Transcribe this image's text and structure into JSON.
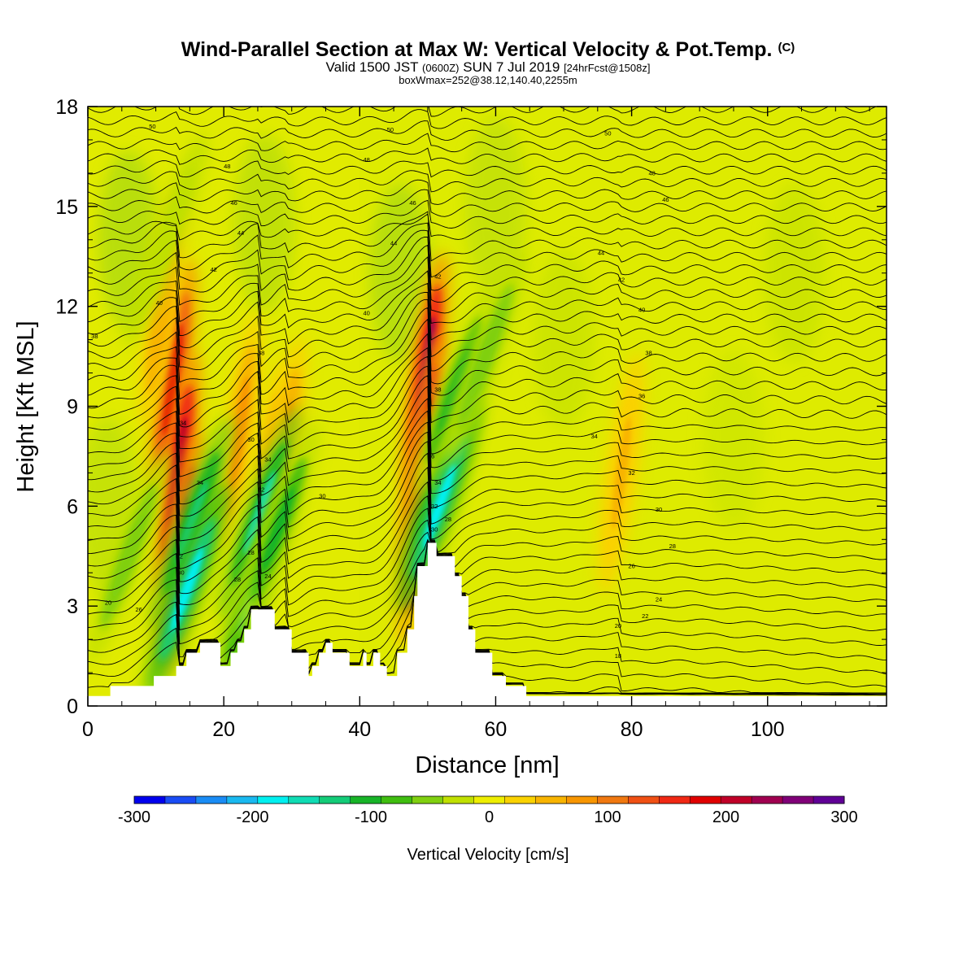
{
  "header": {
    "title": "Wind-Parallel Section at Max W: Vertical Velocity & Pot.Temp.",
    "copyright": "(C)",
    "valid_prefix": "Valid 1500 JST",
    "valid_utc": "(0600Z)",
    "valid_date": "SUN 7 Jul 2019",
    "forecast_tag": "[24hrFcst@1508z]",
    "boxwmax": "boxWmax=252@38.12,140.40,2255m"
  },
  "colors": {
    "field_background": "#eeee00",
    "terrain": "#ffffff",
    "contour": "#000000",
    "colorbar": [
      "#0000ee",
      "#1a4cf5",
      "#1a8cf5",
      "#1ab9f0",
      "#00f0f0",
      "#10dcb4",
      "#14cc78",
      "#18b428",
      "#40be10",
      "#80d010",
      "#c0e000",
      "#eeee00",
      "#fad200",
      "#f8b400",
      "#f89600",
      "#f07810",
      "#f05014",
      "#f02814",
      "#e00000",
      "#c00028",
      "#a00050",
      "#800078",
      "#600096"
    ]
  },
  "chart_data": {
    "type": "heatmap",
    "xlabel": "Distance [nm]",
    "ylabel": "Height [Kft MSL]",
    "xlim": [
      0,
      117.5
    ],
    "ylim": [
      0,
      18
    ],
    "x_ticks": [
      "0",
      "20",
      "40",
      "60",
      "80",
      "100"
    ],
    "x_tick_values": [
      0,
      20,
      40,
      60,
      80,
      100
    ],
    "y_ticks": [
      "0",
      "3",
      "6",
      "9",
      "12",
      "15",
      "18"
    ],
    "y_tick_values": [
      0,
      3,
      6,
      9,
      12,
      15,
      18
    ],
    "colorbar": {
      "label": "Vertical Velocity [cm/s]",
      "range": [
        -300,
        300
      ],
      "tick_labels": [
        "-300",
        "-200",
        "-100",
        "0",
        "100",
        "200",
        "300"
      ],
      "tick_values": [
        -300,
        -200,
        -100,
        0,
        100,
        200,
        300
      ]
    },
    "terrain_profile": {
      "x": [
        0,
        3.3,
        3.3,
        9.7,
        9.7,
        13,
        13,
        14.5,
        14.5,
        16.5,
        16.5,
        19.5,
        19.5,
        21,
        21,
        22,
        22,
        23,
        23,
        24,
        24,
        27.5,
        27.5,
        30,
        30,
        32.5,
        32.5,
        33,
        33,
        34,
        34,
        35,
        35,
        36,
        36,
        38.5,
        38.5,
        40.5,
        40.5,
        41,
        41,
        42,
        42,
        43,
        43,
        44,
        44,
        45.5,
        45.5,
        47,
        47,
        48,
        48,
        48.5,
        48.5,
        50,
        50,
        51.3,
        51.3,
        54,
        54,
        55,
        55,
        56,
        56,
        57,
        57,
        59.5,
        59.5,
        61.5,
        61.5,
        64.5,
        64.5,
        117.5
      ],
      "height_kft": [
        0.3,
        0.3,
        0.6,
        0.6,
        0.9,
        0.9,
        1.2,
        1.2,
        1.6,
        1.6,
        1.9,
        1.9,
        1.2,
        1.2,
        1.6,
        1.6,
        1.9,
        1.9,
        2.3,
        2.3,
        2.9,
        2.9,
        2.3,
        2.3,
        1.6,
        1.6,
        0.9,
        0.9,
        1.2,
        1.2,
        1.6,
        1.6,
        1.9,
        1.9,
        1.6,
        1.6,
        1.2,
        1.2,
        1.6,
        1.6,
        1.2,
        1.2,
        1.6,
        1.6,
        1.2,
        1.2,
        0.9,
        0.9,
        1.6,
        1.6,
        2.3,
        2.3,
        3.3,
        3.3,
        4.2,
        4.2,
        4.9,
        4.9,
        4.5,
        4.5,
        3.9,
        3.9,
        3.3,
        3.3,
        2.3,
        2.3,
        1.6,
        1.6,
        0.9,
        0.9,
        0.6,
        0.6,
        0.3,
        0.3
      ]
    },
    "updrafts_cms": [
      {
        "x": 12.5,
        "z": 9.8,
        "w": 200
      },
      {
        "x": 13.2,
        "z": 7.0,
        "w": 220
      },
      {
        "x": 13.6,
        "z": 4.6,
        "w": 200
      },
      {
        "x": 22.3,
        "z": 8.2,
        "w": 80
      },
      {
        "x": 26.5,
        "z": 6.8,
        "w": 90
      },
      {
        "x": 28.8,
        "z": 7.5,
        "w": 80
      },
      {
        "x": 49.7,
        "z": 10.0,
        "w": 252
      },
      {
        "x": 49.3,
        "z": 7.6,
        "w": 200
      },
      {
        "x": 48.8,
        "z": 5.4,
        "w": 150
      },
      {
        "x": 78.5,
        "z": 7.0,
        "w": 50
      },
      {
        "x": 11.0,
        "z": 12.0,
        "w": 60
      }
    ],
    "downdrafts_cms": [
      {
        "x": 15.3,
        "z": 5.5,
        "w": -150
      },
      {
        "x": 14.6,
        "z": 3.5,
        "w": -200
      },
      {
        "x": 25.3,
        "z": 5.8,
        "w": -170
      },
      {
        "x": 24.5,
        "z": 3.5,
        "w": -130
      },
      {
        "x": 28.0,
        "z": 5.3,
        "w": -100
      },
      {
        "x": 52.2,
        "z": 7.0,
        "w": -150
      },
      {
        "x": 51.7,
        "z": 6.0,
        "w": -200
      },
      {
        "x": 54.0,
        "z": 9.5,
        "w": -100
      },
      {
        "x": 58.5,
        "z": 10.5,
        "w": -60
      },
      {
        "x": 11.5,
        "z": 14.0,
        "w": -40
      },
      {
        "x": 6.0,
        "z": 4.5,
        "w": -60
      }
    ],
    "theta_contour_labels": [
      {
        "text": "50",
        "x": 9.5,
        "z": 17.4
      },
      {
        "text": "50",
        "x": 44.5,
        "z": 17.3
      },
      {
        "text": "50",
        "x": 76.5,
        "z": 17.2
      },
      {
        "text": "48",
        "x": 20.5,
        "z": 16.2
      },
      {
        "text": "48",
        "x": 41.0,
        "z": 16.4
      },
      {
        "text": "48",
        "x": 83.0,
        "z": 16.0
      },
      {
        "text": "46",
        "x": 21.5,
        "z": 15.1
      },
      {
        "text": "46",
        "x": 47.8,
        "z": 15.1
      },
      {
        "text": "46",
        "x": 85.0,
        "z": 15.2
      },
      {
        "text": "44",
        "x": 22.5,
        "z": 14.2
      },
      {
        "text": "44",
        "x": 45.0,
        "z": 13.9
      },
      {
        "text": "44",
        "x": 75.5,
        "z": 13.6
      },
      {
        "text": "42",
        "x": 18.5,
        "z": 13.1
      },
      {
        "text": "42",
        "x": 51.5,
        "z": 12.9
      },
      {
        "text": "42",
        "x": 78.5,
        "z": 12.8
      },
      {
        "text": "40",
        "x": 10.5,
        "z": 12.1
      },
      {
        "text": "40",
        "x": 41.0,
        "z": 11.8
      },
      {
        "text": "40",
        "x": 81.5,
        "z": 11.9
      },
      {
        "text": "38",
        "x": 1.0,
        "z": 11.1
      },
      {
        "text": "38",
        "x": 25.5,
        "z": 10.6
      },
      {
        "text": "38",
        "x": 82.5,
        "z": 10.6
      },
      {
        "text": "36",
        "x": 81.5,
        "z": 9.3
      },
      {
        "text": "34",
        "x": 74.5,
        "z": 8.1
      },
      {
        "text": "32",
        "x": 80.0,
        "z": 7.0
      },
      {
        "text": "30",
        "x": 34.5,
        "z": 6.3
      },
      {
        "text": "30",
        "x": 84.0,
        "z": 5.9
      },
      {
        "text": "28",
        "x": 86.0,
        "z": 4.8
      },
      {
        "text": "26",
        "x": 80.0,
        "z": 4.2
      },
      {
        "text": "24",
        "x": 84.0,
        "z": 3.2
      },
      {
        "text": "22",
        "x": 82.0,
        "z": 2.7
      },
      {
        "text": "20",
        "x": 3.0,
        "z": 3.1
      },
      {
        "text": "20",
        "x": 78.0,
        "z": 2.4
      },
      {
        "text": "26",
        "x": 7.5,
        "z": 2.9
      },
      {
        "text": "18",
        "x": 78.0,
        "z": 1.5
      },
      {
        "text": "34",
        "x": 14.0,
        "z": 8.5
      },
      {
        "text": "34",
        "x": 16.5,
        "z": 6.7
      },
      {
        "text": "32",
        "x": 13.5,
        "z": 4.5
      },
      {
        "text": "30",
        "x": 13.7,
        "z": 4.0
      },
      {
        "text": "30",
        "x": 24.0,
        "z": 8.0
      },
      {
        "text": "34",
        "x": 26.5,
        "z": 7.4
      },
      {
        "text": "32",
        "x": 25.5,
        "z": 6.5
      },
      {
        "text": "28",
        "x": 24.0,
        "z": 4.6
      },
      {
        "text": "28",
        "x": 22.0,
        "z": 3.8
      },
      {
        "text": "24",
        "x": 26.5,
        "z": 3.9
      },
      {
        "text": "38",
        "x": 51.5,
        "z": 9.5
      },
      {
        "text": "36",
        "x": 50.5,
        "z": 7.5
      },
      {
        "text": "34",
        "x": 51.5,
        "z": 6.7
      },
      {
        "text": "32",
        "x": 51.0,
        "z": 6.0
      },
      {
        "text": "28",
        "x": 53.0,
        "z": 5.6
      },
      {
        "text": "30",
        "x": 51.0,
        "z": 5.3
      }
    ]
  }
}
